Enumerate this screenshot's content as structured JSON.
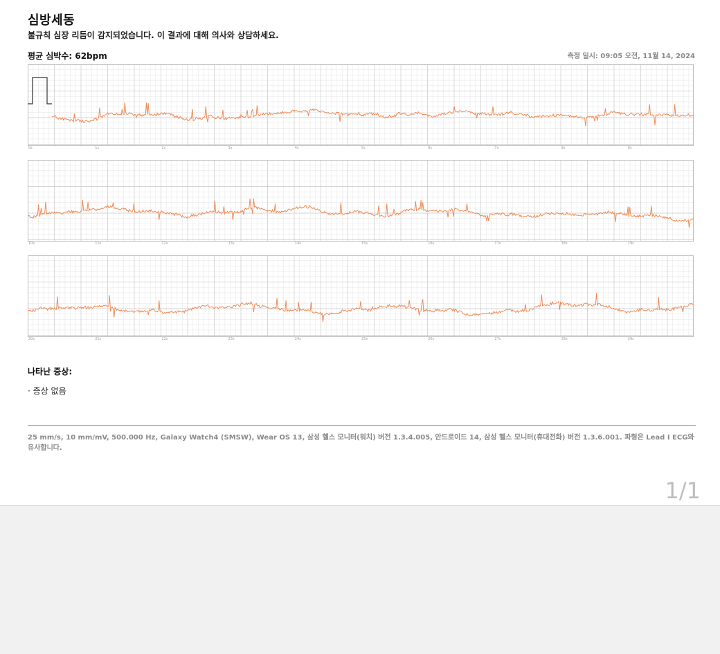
{
  "report": {
    "title": "심방세동",
    "subtitle": "불규칙 심장 리듬이 감지되었습니다. 이 결과에 대해 의사와 상담하세요.",
    "average_heart_rate": "평균 심박수: 62bpm",
    "measured_at": "측정 일시: 09:05 오전, 11월 14, 2024"
  },
  "ecg": {
    "trace_color": "#ef8a55",
    "grid_minor_color": "#e9e9e9",
    "grid_major_color": "#c9c9c9",
    "strips": [
      {
        "ticks": [
          "0s",
          "1s",
          "2s",
          "3s",
          "4s",
          "5s",
          "6s",
          "7s",
          "8s",
          "9s"
        ]
      },
      {
        "ticks": [
          "10s",
          "11s",
          "12s",
          "13s",
          "14s",
          "15s",
          "16s",
          "17s",
          "18s",
          "19s"
        ]
      },
      {
        "ticks": [
          "20s",
          "21s",
          "22s",
          "23s",
          "24s",
          "25s",
          "26s",
          "27s",
          "28s",
          "29s"
        ]
      }
    ]
  },
  "symptoms": {
    "title": "나타난 증상:",
    "items": [
      "· 증상 없음"
    ]
  },
  "footer": {
    "device_info": "25 mm/s, 10 mm/mV, 500.000 Hz, Galaxy Watch4 (SMSW), Wear OS 13, 삼성 헬스 모니터(워치) 버전 1.3.4.005, 안드로이드 14, 삼성 헬스 모니터(휴대전화) 버전 1.3.6.001. 파형은 Lead I ECG와 유사합니다.",
    "page_number": "1/1"
  }
}
